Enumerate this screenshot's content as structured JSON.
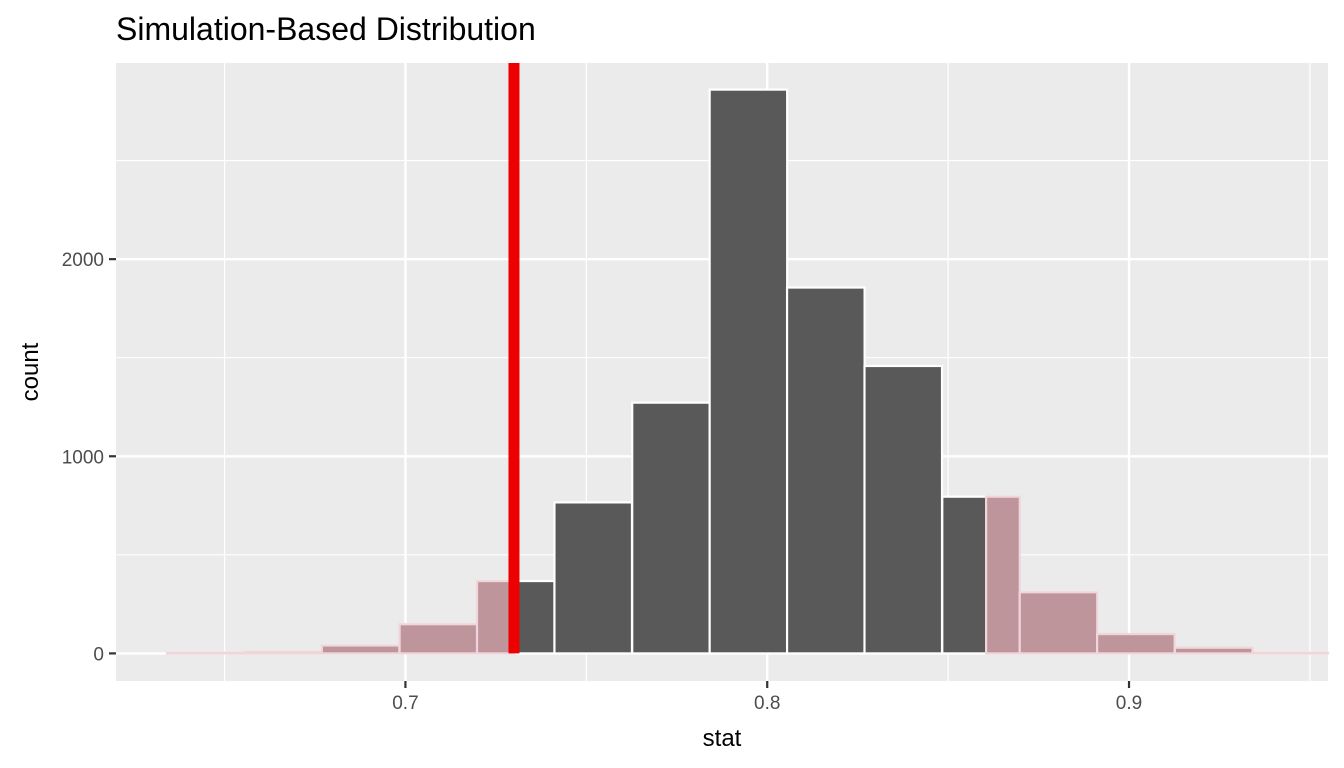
{
  "chart_data": {
    "type": "bar",
    "title": "Simulation-Based Distribution",
    "xlabel": "stat",
    "ylabel": "count",
    "xlim": [
      0.62,
      0.955
    ],
    "ylim": [
      -140,
      2995
    ],
    "x_ticks": [
      0.7,
      0.8,
      0.9
    ],
    "x_tick_labels": [
      "0.7",
      "0.8",
      "0.9"
    ],
    "y_ticks": [
      0,
      1000,
      2000
    ],
    "y_tick_labels": [
      "0",
      "1000",
      "2000"
    ],
    "grid": true,
    "bin_width": 0.02143,
    "bins": [
      {
        "x": 0.6448,
        "count": 3
      },
      {
        "x": 0.6662,
        "count": 8
      },
      {
        "x": 0.6876,
        "count": 40
      },
      {
        "x": 0.7091,
        "count": 148
      },
      {
        "x": 0.7305,
        "count": 367
      },
      {
        "x": 0.7519,
        "count": 766
      },
      {
        "x": 0.7734,
        "count": 1272
      },
      {
        "x": 0.7948,
        "count": 2860
      },
      {
        "x": 0.8162,
        "count": 1856
      },
      {
        "x": 0.8376,
        "count": 1458
      },
      {
        "x": 0.8591,
        "count": 795
      },
      {
        "x": 0.8805,
        "count": 310
      },
      {
        "x": 0.9019,
        "count": 98
      },
      {
        "x": 0.9234,
        "count": 29
      },
      {
        "x": 0.9448,
        "count": 3
      }
    ],
    "observed_stat": 0.73,
    "shade_lower": 0.73,
    "shade_upper": 0.8605,
    "colors": {
      "panel_bg": "#ebebeb",
      "grid": "#ffffff",
      "bar_fill": "#595959",
      "bar_border": "#ffffff",
      "shade_fill": "#bf959c",
      "shade_border": "#f0d6db",
      "observed_line": "#ee0000"
    }
  }
}
